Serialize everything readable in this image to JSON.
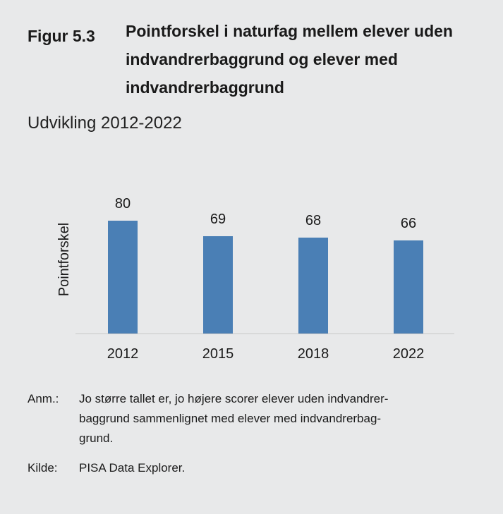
{
  "figure": {
    "number": "Figur 5.3",
    "title": "Pointforskel i naturfag mellem elever uden indvandrerbaggrund og elever med indvandrerbaggrund",
    "subtitle": "Udvikling 2012-2022"
  },
  "chart_data": {
    "type": "bar",
    "categories": [
      "2012",
      "2015",
      "2018",
      "2022"
    ],
    "values": [
      80,
      69,
      68,
      66
    ],
    "ylabel": "Pointforskel",
    "xlabel": "",
    "ylim": [
      0,
      80
    ],
    "grid": false,
    "bar_color": "#4a7fb5"
  },
  "notes": {
    "anm_label": "Anm.:",
    "anm_lines": [
      "Jo større tallet er, jo højere scorer elever uden indvandrer-",
      "baggrund sammenlignet med elever med indvandrerbag-",
      "grund."
    ],
    "source_label": "Kilde:",
    "source_text": "PISA Data Explorer."
  }
}
